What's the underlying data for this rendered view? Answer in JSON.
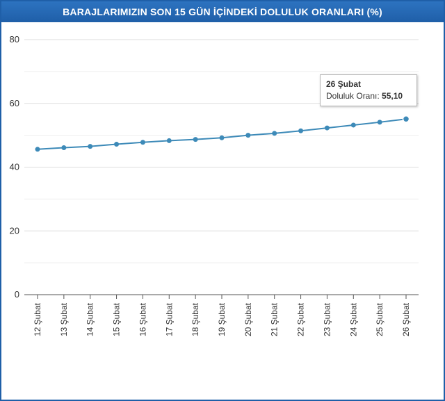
{
  "title": "BARAJLARIMIZIN SON 15 GÜN İÇİNDEKİ DOLULUK ORANLARI (%)",
  "colors": {
    "frame": "#1f5fa8",
    "line": "#3d8ab8",
    "point": "#3d8ab8",
    "grid": "#dddddd"
  },
  "tooltip": {
    "date": "26 Şubat",
    "label": "Doluluk Oranı:",
    "value": "55,10"
  },
  "chart_data": {
    "type": "line",
    "title": "BARAJLARIMIZIN SON 15 GÜN İÇİNDEKİ DOLULUK ORANLARI (%)",
    "xlabel": "",
    "ylabel": "",
    "ylim": [
      0,
      80
    ],
    "yticks": [
      0,
      20,
      40,
      60,
      80
    ],
    "grid": true,
    "categories": [
      "12 Şubat",
      "13 Şubat",
      "14 Şubat",
      "15 Şubat",
      "16 Şubat",
      "17 Şubat",
      "18 Şubat",
      "19 Şubat",
      "20 Şubat",
      "21 Şubat",
      "22 Şubat",
      "23 Şubat",
      "24 Şubat",
      "25 Şubat",
      "26 Şubat"
    ],
    "series": [
      {
        "values": [
          45.6,
          46.1,
          46.5,
          47.2,
          47.8,
          48.3,
          48.7,
          49.2,
          50.0,
          50.6,
          51.4,
          52.3,
          53.2,
          54.1,
          55.1
        ]
      }
    ]
  }
}
